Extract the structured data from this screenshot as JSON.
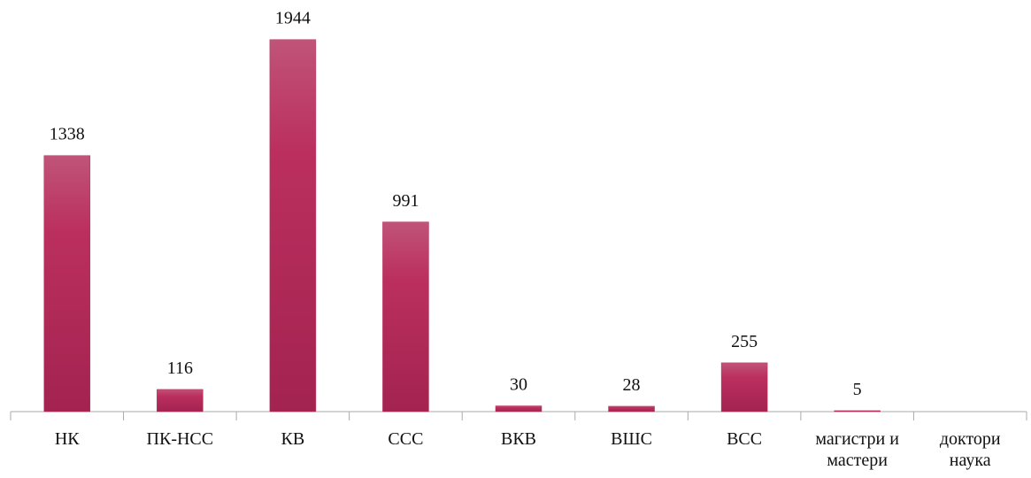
{
  "chart_data": {
    "type": "bar",
    "categories": [
      "НК",
      "ПК-НСС",
      "КВ",
      "ССС",
      "ВКВ",
      "ВШС",
      "ВСС",
      "магистри и мастери",
      "доктори наука"
    ],
    "values": [
      1338,
      116,
      1944,
      991,
      30,
      28,
      255,
      5,
      null
    ],
    "color": "#b8305e",
    "ylim": [
      0,
      2100
    ]
  }
}
